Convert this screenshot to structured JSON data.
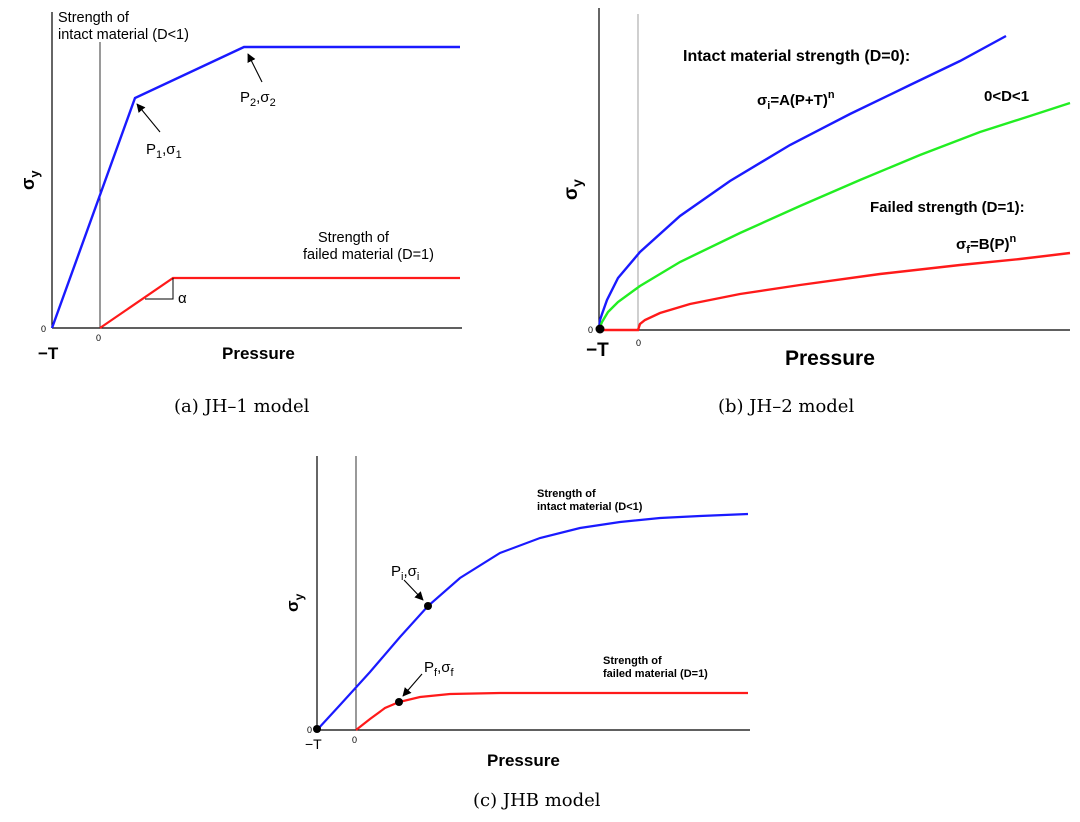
{
  "figure": {
    "panel_a": {
      "caption": "(a)  JH–1 model",
      "ylabel": "σ",
      "ylabel_sub": "y",
      "xlabel": "Pressure",
      "tick_minus_t": "−T",
      "tick_zero_x": "0",
      "tick_zero_y": "0",
      "intact_label_line1": "Strength of",
      "intact_label_line2": "intact material (D<1)",
      "failed_label_line1": "Strength of",
      "failed_label_line2": "failed material (D=1)",
      "p1_label": "P",
      "p1_sub": "1",
      "p1_sigma": ",σ",
      "p1_sigma_sub": "1",
      "p2_label": "P",
      "p2_sub": "2",
      "p2_sigma": ",σ",
      "p2_sigma_sub": "2",
      "slope_label": "α"
    },
    "panel_b": {
      "caption": "(b)  JH–2 model",
      "ylabel": "σ",
      "ylabel_sub": "y",
      "xlabel": "Pressure",
      "tick_minus_t": "−T",
      "tick_zero_x": "0",
      "tick_zero_y": "0",
      "intact_heading": "Intact material strength (D=0):",
      "intact_eq_sigma": "σ",
      "intact_eq_sub": "i",
      "intact_eq_body": "=A(P+T)",
      "intact_eq_sup": "n",
      "mid_label": "0<D<1",
      "failed_heading": "Failed strength (D=1):",
      "failed_eq_sigma": "σ",
      "failed_eq_sub": "f",
      "failed_eq_body": "=B(P)",
      "failed_eq_sup": "n"
    },
    "panel_c": {
      "caption": "(c)  JHB model",
      "ylabel": "σ",
      "ylabel_sub": "y",
      "xlabel": "Pressure",
      "tick_minus_t": "−T",
      "tick_zero_x": "0",
      "tick_zero_y": "0",
      "intact_label_line1": "Strength of",
      "intact_label_line2": "intact material (D<1)",
      "failed_label_line1": "Strength of",
      "failed_label_line2": "failed material (D=1)",
      "pi_label": "P",
      "pi_sub": "i",
      "pi_sigma": ",σ",
      "pi_sigma_sub": "i",
      "pf_label": "P",
      "pf_sub": "f",
      "pf_sigma": ",σ",
      "pf_sigma_sub": "f"
    },
    "colors": {
      "intact": "#1a1aff",
      "damaged": "#22ee22",
      "failed": "#ff1a1a",
      "axis": "#000000"
    }
  }
}
